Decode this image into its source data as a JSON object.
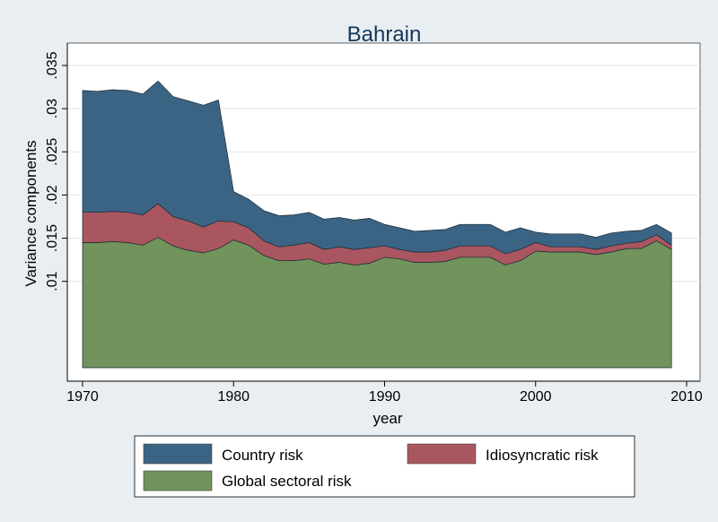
{
  "chart_data": {
    "type": "area",
    "stacked": true,
    "title": "Bahrain",
    "xlabel": "year",
    "ylabel": "Variance components",
    "xlim": [
      1970,
      2010
    ],
    "ylim": [
      0,
      0.035
    ],
    "x_ticks": [
      1970,
      1980,
      1990,
      2000,
      2010
    ],
    "x_tick_labels": [
      "1970",
      "1980",
      "1990",
      "2000",
      "2010"
    ],
    "y_ticks": [
      0.01,
      0.015,
      0.02,
      0.025,
      0.03,
      0.035
    ],
    "y_tick_labels": [
      ".01",
      ".015",
      ".02",
      ".025",
      ".03",
      ".035"
    ],
    "grid": true,
    "legend_position": "bottom",
    "x": [
      1970,
      1971,
      1972,
      1973,
      1974,
      1975,
      1976,
      1977,
      1978,
      1979,
      1980,
      1981,
      1982,
      1983,
      1984,
      1985,
      1986,
      1987,
      1988,
      1989,
      1990,
      1991,
      1992,
      1993,
      1994,
      1995,
      1996,
      1997,
      1998,
      1999,
      2000,
      2001,
      2002,
      2003,
      2004,
      2005,
      2006,
      2007,
      2008,
      2009
    ],
    "series": [
      {
        "name": "Global sectoral risk",
        "color": "#71935c",
        "values": [
          0.0145,
          0.0145,
          0.0146,
          0.0145,
          0.0142,
          0.0151,
          0.0141,
          0.0136,
          0.0133,
          0.0138,
          0.0148,
          0.0142,
          0.013,
          0.0124,
          0.0124,
          0.0126,
          0.012,
          0.0122,
          0.0119,
          0.0121,
          0.0128,
          0.0126,
          0.0122,
          0.0122,
          0.0123,
          0.0128,
          0.0128,
          0.0128,
          0.0119,
          0.0124,
          0.0135,
          0.0134,
          0.0134,
          0.0134,
          0.0131,
          0.0134,
          0.0138,
          0.0138,
          0.0147,
          0.0137
        ],
        "top": [
          0.0145,
          0.0145,
          0.0146,
          0.0145,
          0.0142,
          0.0151,
          0.0141,
          0.0136,
          0.0133,
          0.0138,
          0.0148,
          0.0142,
          0.013,
          0.0124,
          0.0124,
          0.0126,
          0.012,
          0.0122,
          0.0119,
          0.0121,
          0.0128,
          0.0126,
          0.0122,
          0.0122,
          0.0123,
          0.0128,
          0.0128,
          0.0128,
          0.0119,
          0.0124,
          0.0135,
          0.0134,
          0.0134,
          0.0134,
          0.0131,
          0.0134,
          0.0138,
          0.0138,
          0.0147,
          0.0137
        ]
      },
      {
        "name": "Idiosyncratic risk",
        "color": "#aa5660",
        "top": [
          0.018,
          0.018,
          0.0181,
          0.018,
          0.0177,
          0.019,
          0.0175,
          0.017,
          0.0163,
          0.017,
          0.0169,
          0.0162,
          0.0147,
          0.014,
          0.0142,
          0.0145,
          0.0137,
          0.014,
          0.0137,
          0.0139,
          0.0141,
          0.0137,
          0.0134,
          0.0134,
          0.0136,
          0.0141,
          0.0141,
          0.0141,
          0.0132,
          0.0137,
          0.0145,
          0.014,
          0.014,
          0.014,
          0.0137,
          0.0141,
          0.0144,
          0.0146,
          0.0154,
          0.0142
        ]
      },
      {
        "name": "Country risk",
        "color": "#3b6484",
        "top": [
          0.0321,
          0.032,
          0.0322,
          0.0321,
          0.0317,
          0.0332,
          0.0314,
          0.0309,
          0.0304,
          0.031,
          0.0204,
          0.0195,
          0.0182,
          0.0176,
          0.0177,
          0.018,
          0.0172,
          0.0174,
          0.0171,
          0.0173,
          0.0166,
          0.0162,
          0.0158,
          0.0159,
          0.016,
          0.0166,
          0.0166,
          0.0166,
          0.0157,
          0.0162,
          0.0157,
          0.0155,
          0.0155,
          0.0155,
          0.0151,
          0.0156,
          0.0158,
          0.0159,
          0.0166,
          0.0156
        ]
      }
    ],
    "legend": [
      {
        "label": "Country risk",
        "color": "#3b6484"
      },
      {
        "label": "Idiosyncratic risk",
        "color": "#aa5660"
      },
      {
        "label": "Global sectoral risk",
        "color": "#71935c"
      }
    ]
  }
}
